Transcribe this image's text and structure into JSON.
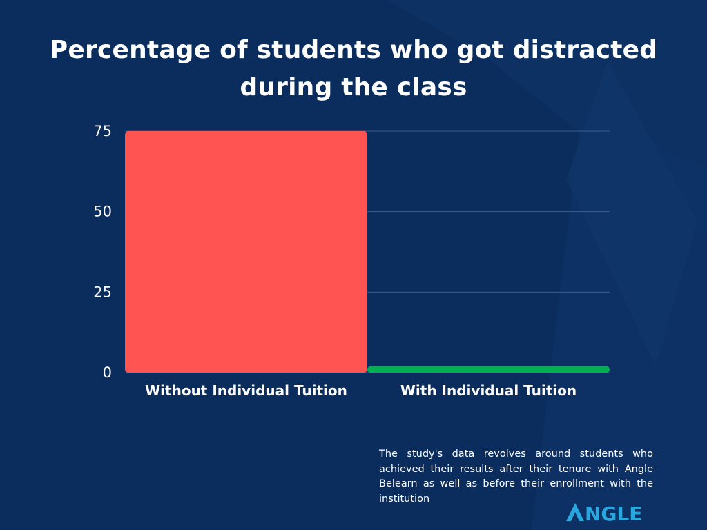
{
  "title": "Percentage of students who got distracted during the class",
  "footnote": "The study's data revolves around students who achieved their results after their tenure with Angle Belearn as well as before their enrollment with the institution",
  "logo": {
    "text": "ANGLE",
    "icon": "angle-logo-icon"
  },
  "colors": {
    "background": "#0a2d5e",
    "accent": "#29a8e0",
    "gridline": "#3d5e8f"
  },
  "chart_data": {
    "type": "bar",
    "title": "Percentage of students who got distracted during the class",
    "categories": [
      "Without Individual Tuition",
      "With Individual Tuition"
    ],
    "values": [
      75,
      2
    ],
    "bar_colors": [
      "#ff5452",
      "#00b050"
    ],
    "y_ticks": [
      0,
      25,
      50,
      75
    ],
    "ylim": [
      0,
      75
    ],
    "xlabel": "",
    "ylabel": "",
    "grid": true,
    "legend": "none"
  }
}
